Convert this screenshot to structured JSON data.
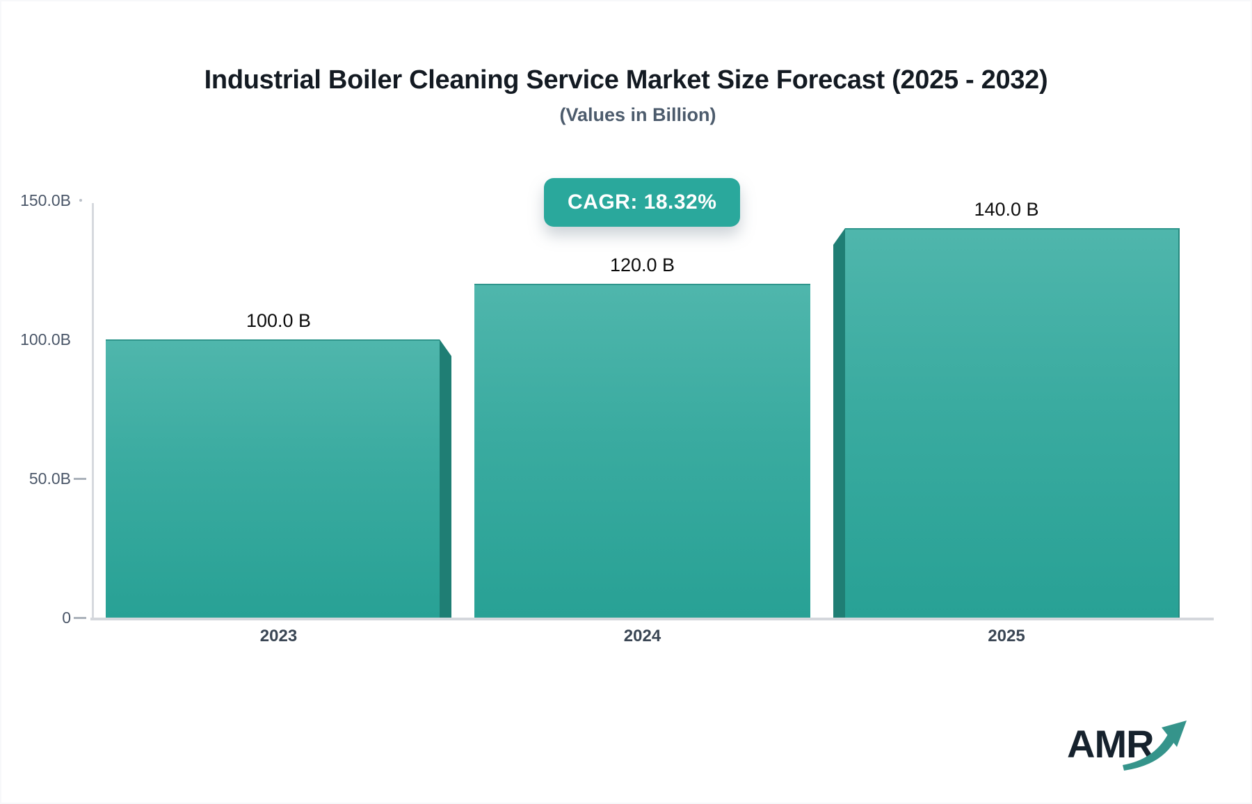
{
  "header": {
    "title": "Industrial Boiler Cleaning Service Market Size Forecast (2025 - 2032)",
    "subtitle": "(Values in Billion)",
    "cagr_badge": "CAGR: 18.32%"
  },
  "chart_data": {
    "type": "bar",
    "title": "Industrial Boiler Cleaning Service Market Size Forecast (2025 - 2032)",
    "subtitle": "(Values in Billion)",
    "cagr_percent": "18.32%",
    "categories": [
      "2023",
      "2024",
      "2025"
    ],
    "values": [
      100.0,
      120.0,
      140.0
    ],
    "bar_value_labels": [
      "100.0 B",
      "120.0 B",
      "140.0 B"
    ],
    "unit": "Billion",
    "ylim": [
      0,
      150
    ],
    "yticks": [
      {
        "value": 150,
        "label": "150.0B",
        "mark": "dot"
      },
      {
        "value": 100,
        "label": "100.0B",
        "mark": "none"
      },
      {
        "value": 50,
        "label": "50.0B",
        "mark": "dash"
      },
      {
        "value": 0,
        "label": "0",
        "mark": "dash"
      }
    ],
    "grid": false,
    "legend": "none",
    "colors": {
      "bar_gradient_top": "#4fb6ac",
      "bar_gradient_bottom": "#28a195",
      "bar_side_3d": "#1f7e74",
      "badge_background": "#2aa89c",
      "axis_line": "#d6d9de",
      "title_text": "#131a22",
      "subtitle_text": "#4c5b6c",
      "tick_text": "#4a5668"
    }
  },
  "footer": {
    "logo_text": "AMR",
    "logo_arrow_color": "#35948b"
  }
}
